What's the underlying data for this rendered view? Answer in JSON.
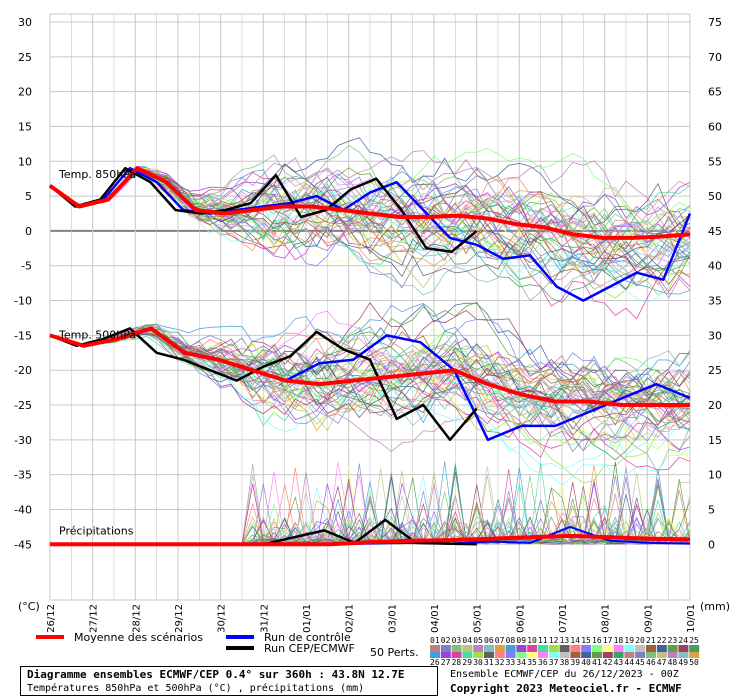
{
  "chart_data": {
    "type": "line",
    "left_axis": {
      "unit_label": "(°C)",
      "ticks": [
        30,
        25,
        20,
        15,
        10,
        5,
        0,
        -5,
        -10,
        -15,
        -20,
        -25,
        -30,
        -35,
        -40,
        -45
      ],
      "range": [
        -45,
        30
      ]
    },
    "right_axis": {
      "unit_label": "(mm)",
      "ticks": [
        75,
        70,
        65,
        60,
        55,
        50,
        45,
        40,
        35,
        30,
        25,
        20,
        15,
        10,
        5,
        0
      ],
      "range": [
        0,
        75
      ]
    },
    "x_dates": [
      "26/12",
      "27/12",
      "28/12",
      "29/12",
      "30/12",
      "31/12",
      "01/01",
      "02/01",
      "03/01",
      "04/01",
      "05/01",
      "06/01",
      "07/01",
      "08/01",
      "09/01",
      "10/01"
    ],
    "grid": true,
    "section_labels": {
      "t850": "Temp. 850hPa",
      "t500": "Temp. 500hPa",
      "precip": "Précipitations"
    },
    "t850": {
      "mean": [
        6.5,
        3.5,
        4.5,
        9.0,
        7.0,
        3.0,
        2.5,
        3.0,
        3.5,
        3.5,
        3.0,
        2.5,
        2.0,
        2.0,
        2.2,
        1.8,
        1.0,
        0.5,
        -0.5,
        -1.0,
        -1.0,
        -0.8,
        -0.5
      ],
      "control": [
        6.5,
        3.5,
        4.5,
        9.0,
        7.0,
        3.0,
        2.5,
        3.0,
        3.5,
        4.0,
        5.0,
        3.0,
        5.5,
        7.0,
        3.0,
        -1.0,
        -2.0,
        -4.0,
        -3.5,
        -8.0,
        -10.0,
        -8.0,
        -6.0,
        -7.0,
        2.5
      ],
      "oper": [
        6.5,
        3.5,
        4.5,
        9.0,
        7.0,
        3.0,
        2.5,
        3.0,
        4.0,
        8.0,
        2.0,
        3.0,
        6.0,
        7.5,
        3.0,
        -2.5,
        -3.0,
        0.0
      ]
    },
    "t500": {
      "mean": [
        -15.0,
        -16.5,
        -15.5,
        -14.0,
        -17.5,
        -18.5,
        -20.0,
        -21.5,
        -22.0,
        -21.5,
        -21.0,
        -20.5,
        -20.0,
        -22.0,
        -23.5,
        -24.5,
        -24.5,
        -25.0,
        -25.0,
        -25.0
      ],
      "control": [
        -15.0,
        -16.5,
        -15.5,
        -14.0,
        -17.5,
        -18.5,
        -20.0,
        -21.5,
        -19.0,
        -18.5,
        -15.0,
        -16.0,
        -20.0,
        -30.0,
        -28.0,
        -28.0,
        -26.0,
        -24.0,
        -22.0,
        -24.0
      ],
      "oper": [
        -15.0,
        -16.5,
        -15.5,
        -14.0,
        -17.5,
        -18.5,
        -20.0,
        -21.5,
        -19.5,
        -18.0,
        -14.5,
        -17.0,
        -18.5,
        -27.0,
        -25.0,
        -30.0,
        -25.5
      ]
    },
    "precip": {
      "mean": [
        0,
        0,
        0,
        0,
        0,
        0,
        0,
        0,
        0.3,
        0.5,
        0.6,
        0.8,
        1.0,
        1.2,
        1.0,
        0.8,
        0.7
      ],
      "control": [
        0,
        0,
        0,
        0,
        0,
        0,
        0,
        0,
        0.1,
        0.2,
        0.1,
        0.4,
        0.2,
        2.5,
        0.5,
        0.2,
        0.1
      ],
      "oper": [
        0,
        0,
        0,
        0,
        0,
        0,
        0,
        0,
        1.0,
        2.0,
        0.2,
        3.5,
        0.2,
        0.1,
        0.0
      ]
    },
    "colors": {
      "mean": "#ff0000",
      "control": "#0000ff",
      "oper": "#000000",
      "grid": "#c8c8c8",
      "zero_line": "#808080"
    }
  },
  "legend": {
    "mean": "Moyenne des scénarios",
    "control": "Run de contrôle",
    "oper": "Run CEP/ECMWF",
    "perts_label": "50 Perts.",
    "pert_ids_top": [
      "01",
      "02",
      "03",
      "04",
      "05",
      "06",
      "07",
      "08",
      "09",
      "10",
      "11",
      "12",
      "13",
      "14",
      "15",
      "16",
      "17",
      "18",
      "19",
      "20",
      "21",
      "22",
      "23",
      "24",
      "25"
    ],
    "pert_ids_bottom": [
      "26",
      "27",
      "28",
      "29",
      "30",
      "31",
      "32",
      "33",
      "34",
      "35",
      "36",
      "37",
      "38",
      "39",
      "40",
      "41",
      "42",
      "43",
      "44",
      "45",
      "46",
      "47",
      "48",
      "49",
      "50"
    ],
    "pert_colors": [
      "#c08080",
      "#8080c0",
      "#80c080",
      "#c0c080",
      "#c080c0",
      "#80c0c0",
      "#e0a040",
      "#40a0e0",
      "#a040e0",
      "#e040a0",
      "#40e0a0",
      "#a0e040",
      "#606060",
      "#ff8080",
      "#8080ff",
      "#80ff80",
      "#ffff80",
      "#ff80ff",
      "#80ffff",
      "#c0c0c0",
      "#a06040",
      "#4060a0",
      "#60a040",
      "#a04060",
      "#40a060"
    ]
  },
  "footer": {
    "title": "Diagramme ensembles ECMWF/CEP 0.4° sur 360h : 43.8N 12.7E",
    "subtitle": "Températures 850hPa et 500hPa (°C) , précipitations (mm)",
    "run": "Ensemble ECMWF/CEP du 26/12/2023 - 00Z",
    "copyright": "Copyright 2023 Meteociel.fr - ECMWF"
  }
}
